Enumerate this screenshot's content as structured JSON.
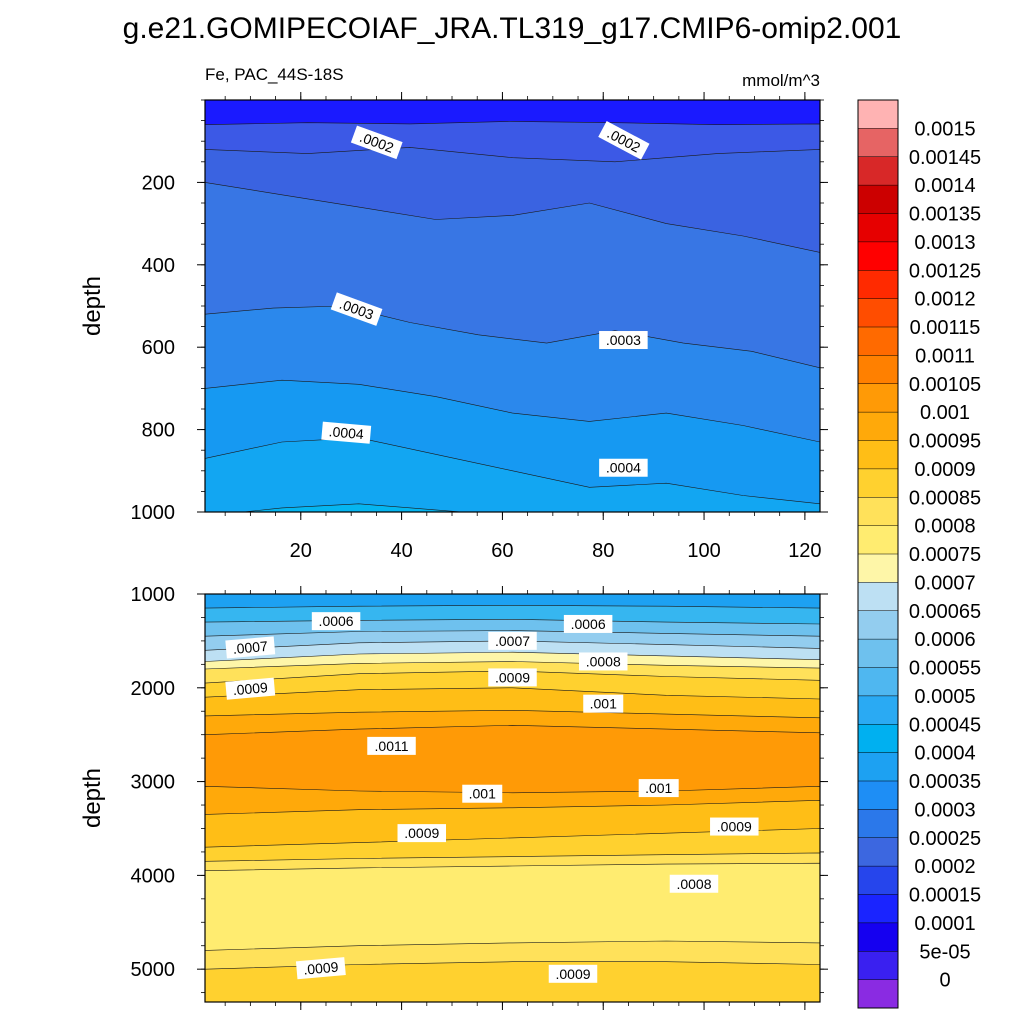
{
  "title": "g.e21.GOMIPECOIAF_JRA.TL319_g17.CMIP6-omip2.001",
  "chart_data": {
    "type": "filled-contour",
    "variable_label": "Fe, PAC_44S-18S",
    "units": "mmol/m^3",
    "x_ticks": [
      20,
      40,
      60,
      80,
      100,
      120
    ],
    "x_range": [
      1,
      123
    ],
    "panels": [
      {
        "id": "upper",
        "ylabel": "depth",
        "y_range": [
          0,
          1000
        ],
        "y_ticks": [
          200,
          400,
          600,
          800,
          1000
        ],
        "bands": [
          {
            "top": [
              0,
              0,
              0,
              0,
              0,
              0,
              0
            ],
            "color": "#1a1aff"
          },
          {
            "top": [
              60,
              55,
              58,
              52,
              55,
              60,
              58
            ],
            "color": "#3c59e6"
          },
          {
            "top": [
              120,
              130,
              115,
              140,
              150,
              130,
              120
            ],
            "color": "#3a63e1"
          },
          {
            "top": [
              200,
              230,
              260,
              290,
              280,
              250,
              300,
              330,
              370
            ],
            "color": "#3876e4"
          },
          {
            "top": [
              520,
              505,
              500,
              540,
              570,
              590,
              560,
              590,
              610,
              650
            ],
            "color": "#2b88ec"
          },
          {
            "top": [
              700,
              680,
              690,
              720,
              760,
              780,
              760,
              790,
              830
            ],
            "color": "#1699f2"
          },
          {
            "top": [
              870,
              830,
              820,
              860,
              900,
              940,
              930,
              960,
              980
            ],
            "color": "#12a6f2"
          },
          {
            "top": [
              1010,
              990,
              980,
              995,
              1010,
              1010,
              1010,
              1010,
              1010
            ],
            "color": "#05b5f0"
          }
        ],
        "contour_labels": [
          {
            "text": ".0002",
            "x": 35,
            "y": 105,
            "angle": 20
          },
          {
            "text": ".0002",
            "x": 84,
            "y": 100,
            "angle": 28
          },
          {
            "text": ".0003",
            "x": 31,
            "y": 510,
            "angle": 20
          },
          {
            "text": ".0003",
            "x": 84,
            "y": 585,
            "angle": 0
          },
          {
            "text": ".0004",
            "x": 29,
            "y": 810,
            "angle": 5
          },
          {
            "text": ".0004",
            "x": 84,
            "y": 895,
            "angle": 0
          }
        ]
      },
      {
        "id": "lower",
        "ylabel": "depth",
        "y_range": [
          1000,
          5350
        ],
        "y_ticks": [
          1000,
          2000,
          3000,
          4000,
          5000
        ],
        "bands": [
          {
            "top": [
              1000,
              1000,
              1000,
              1000
            ],
            "color": "#1da1f2"
          },
          {
            "top": [
              1150,
              1130,
              1120,
              1130,
              1150
            ],
            "color": "#36b6f0"
          },
          {
            "top": [
              1300,
              1280,
              1270,
              1300,
              1320
            ],
            "color": "#6ec1ee"
          },
          {
            "top": [
              1450,
              1400,
              1390,
              1420,
              1450
            ],
            "color": "#93cdef"
          },
          {
            "top": [
              1600,
              1520,
              1500,
              1540,
              1580
            ],
            "color": "#bde0f3"
          },
          {
            "top": [
              1720,
              1640,
              1620,
              1660,
              1700
            ],
            "color": "#fef6a8"
          },
          {
            "top": [
              1800,
              1740,
              1720,
              1760,
              1790
            ],
            "color": "#ffe15a"
          },
          {
            "top": [
              1950,
              1850,
              1820,
              1880,
              1920
            ],
            "color": "#ffd12f"
          },
          {
            "top": [
              2100,
              2020,
              2000,
              2080,
              2120
            ],
            "color": "#ffbe16"
          },
          {
            "top": [
              2300,
              2260,
              2240,
              2280,
              2320
            ],
            "color": "#ffa90a"
          },
          {
            "top": [
              2500,
              2440,
              2400,
              2440,
              2480
            ],
            "color": "#ff9a06"
          },
          {
            "top": [
              3050,
              3100,
              3120,
              3100,
              3050
            ],
            "color": "#ffa90a"
          },
          {
            "top": [
              3350,
              3300,
              3280,
              3250,
              3200
            ],
            "color": "#ffbe16"
          },
          {
            "top": [
              3700,
              3650,
              3600,
              3550,
              3500
            ],
            "color": "#ffd12f"
          },
          {
            "top": [
              3850,
              3820,
              3800,
              3780,
              3760
            ],
            "color": "#ffe15a"
          },
          {
            "top": [
              3950,
              3920,
              3900,
              3880,
              3870
            ],
            "color": "#ffec70"
          },
          {
            "top": [
              4800,
              4750,
              4720,
              4700,
              4720
            ],
            "color": "#ffe15a"
          },
          {
            "top": [
              5000,
              4950,
              4920,
              4920,
              4950
            ],
            "color": "#ffd12f"
          }
        ],
        "contour_labels": [
          {
            "text": ".0006",
            "x": 27,
            "y": 1300,
            "angle": 0
          },
          {
            "text": ".0006",
            "x": 77,
            "y": 1330,
            "angle": 0
          },
          {
            "text": ".0007",
            "x": 10,
            "y": 1580,
            "angle": -5
          },
          {
            "text": ".0007",
            "x": 62,
            "y": 1510,
            "angle": 0
          },
          {
            "text": ".0008",
            "x": 80,
            "y": 1730,
            "angle": 0
          },
          {
            "text": ".0009",
            "x": 10,
            "y": 2020,
            "angle": -5
          },
          {
            "text": ".0009",
            "x": 62,
            "y": 1900,
            "angle": 0
          },
          {
            "text": ".001",
            "x": 80,
            "y": 2180,
            "angle": 0
          },
          {
            "text": ".0011",
            "x": 38,
            "y": 2630,
            "angle": 0
          },
          {
            "text": ".001",
            "x": 56,
            "y": 3140,
            "angle": 0
          },
          {
            "text": ".001",
            "x": 91,
            "y": 3080,
            "angle": 0
          },
          {
            "text": ".0009",
            "x": 44,
            "y": 3560,
            "angle": 0
          },
          {
            "text": ".0009",
            "x": 106,
            "y": 3490,
            "angle": 0
          },
          {
            "text": ".0008",
            "x": 98,
            "y": 4100,
            "angle": 0
          },
          {
            "text": ".0009",
            "x": 24,
            "y": 5000,
            "angle": -5
          },
          {
            "text": ".0009",
            "x": 74,
            "y": 5060,
            "angle": 0
          }
        ]
      }
    ],
    "colorbar": {
      "labels": [
        "0.0015",
        "0.00145",
        "0.0014",
        "0.00135",
        "0.0013",
        "0.00125",
        "0.0012",
        "0.00115",
        "0.0011",
        "0.00105",
        "0.001",
        "0.00095",
        "0.0009",
        "0.00085",
        "0.0008",
        "0.00075",
        "0.0007",
        "0.00065",
        "0.0006",
        "0.00055",
        "0.0005",
        "0.00045",
        "0.0004",
        "0.00035",
        "0.0003",
        "0.00025",
        "0.0002",
        "0.00015",
        "0.0001",
        "5e-05",
        "0"
      ],
      "colors": [
        "#ffb3b3",
        "#e66464",
        "#d82828",
        "#cc0000",
        "#e60000",
        "#ff0000",
        "#ff2a00",
        "#ff4d00",
        "#ff6a00",
        "#ff8000",
        "#ff9a06",
        "#ffa90a",
        "#ffbe16",
        "#ffd12f",
        "#ffe15a",
        "#ffec70",
        "#fef6a8",
        "#bde0f3",
        "#93cdef",
        "#6ec1ee",
        "#4fb7f0",
        "#2aaaf3",
        "#00b0f0",
        "#1da1f2",
        "#1e8ef5",
        "#2b78ea",
        "#3c67e0",
        "#2645ec",
        "#1a24ff",
        "#1500f0",
        "#3a20f0",
        "#8a2be2"
      ]
    }
  }
}
